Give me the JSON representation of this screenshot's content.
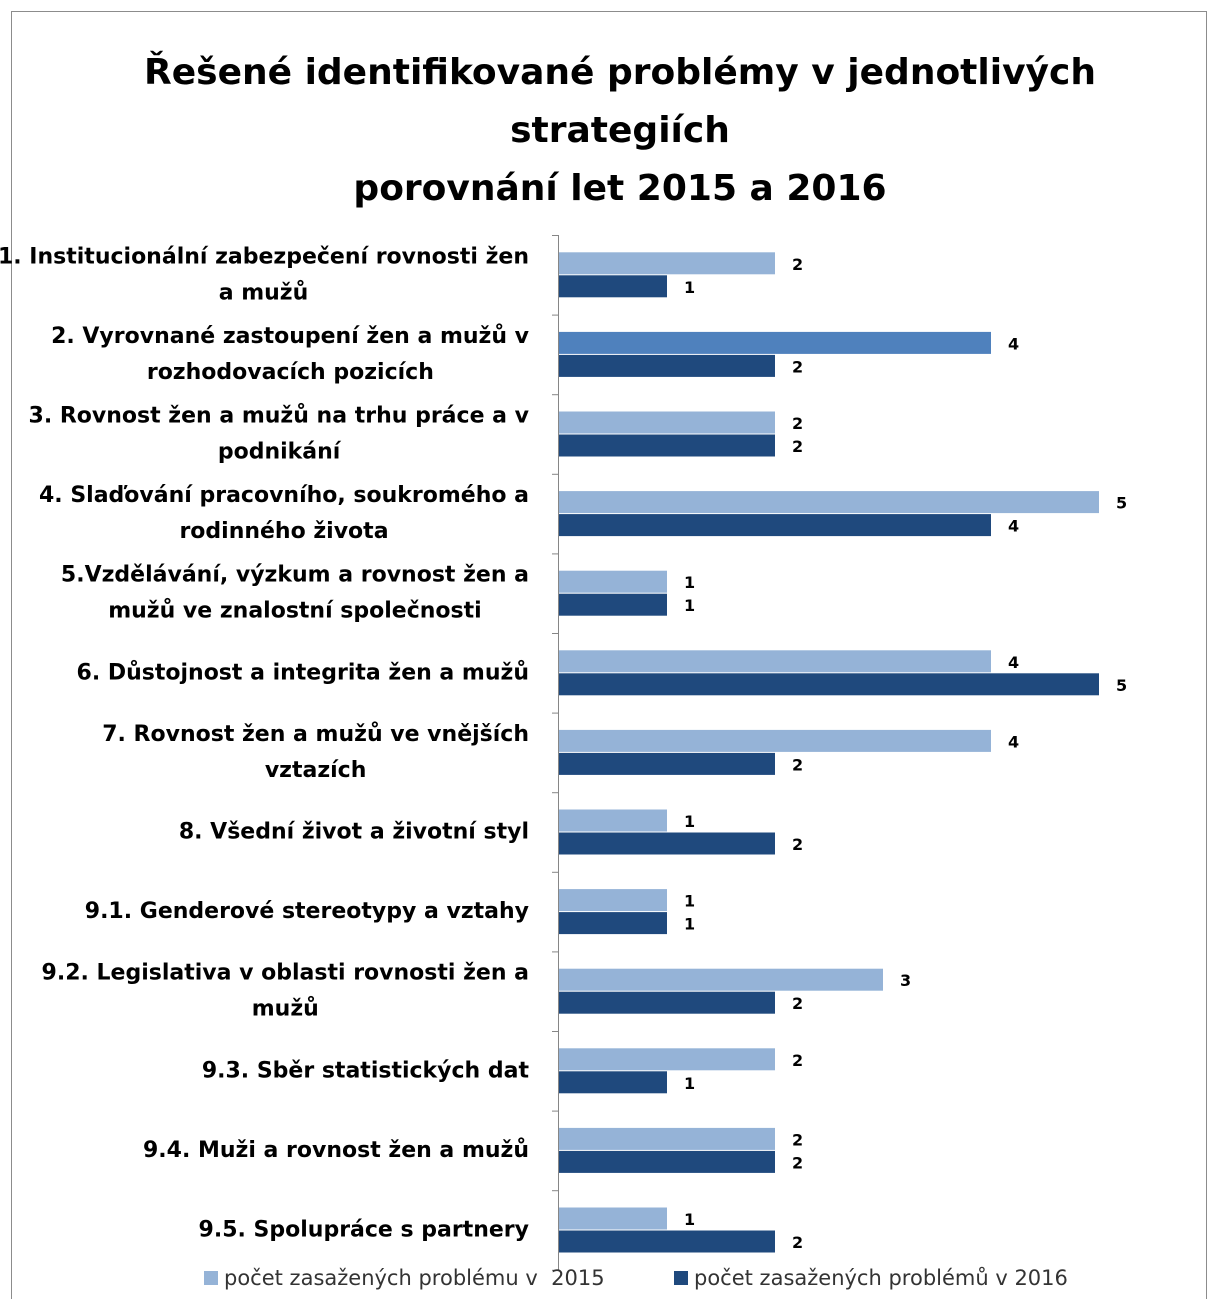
{
  "chart_data": {
    "type": "bar",
    "orientation": "horizontal",
    "title": [
      "Řešené identifikované problémy v jednotlivých",
      "strategiích",
      "porovnání let 2015 a 2016"
    ],
    "categories": [
      [
        "1. Institucionální zabezpečení rovnosti žen",
        "a mužů"
      ],
      [
        "2. Vyrovnané zastoupení žen a mužů v",
        "rozhodovacích pozicích"
      ],
      [
        "3. Rovnost žen a mužů na trhu práce a v",
        "podnikání"
      ],
      [
        "4. Slaďování pracovního, soukromého a",
        "rodinného života"
      ],
      [
        "5.Vzdělávání, výzkum a rovnost žen a",
        "mužů ve znalostní společnosti"
      ],
      [
        "6. Důstojnost a integrita žen a mužů"
      ],
      [
        "7. Rovnost žen a mužů ve vnějších",
        "vztazích"
      ],
      [
        "8. Všední život a životní styl"
      ],
      [
        "9.1. Genderové stereotypy a vztahy"
      ],
      [
        "9.2. Legislativa v oblasti rovnosti žen a",
        "mužů"
      ],
      [
        "9.3. Sběr statistických dat"
      ],
      [
        "9.4. Muži a rovnost žen a mužů"
      ],
      [
        "9.5. Spolupráce s partnery"
      ]
    ],
    "series": [
      {
        "name": "počet zasažených problému v  2015",
        "color": "#95b3d7",
        "values": [
          2,
          4,
          2,
          5,
          1,
          4,
          4,
          1,
          1,
          3,
          2,
          2,
          1
        ]
      },
      {
        "name": "počet zasažených problémů v 2016",
        "color": "#1f497d",
        "values": [
          1,
          2,
          2,
          4,
          1,
          5,
          2,
          2,
          1,
          2,
          1,
          2,
          2
        ]
      }
    ],
    "highlight": {
      "series": 0,
      "index": 1,
      "color": "#4f81bd"
    },
    "xlim": [
      0,
      5
    ],
    "grid": false,
    "legend": "bottom",
    "data_labels": true
  }
}
